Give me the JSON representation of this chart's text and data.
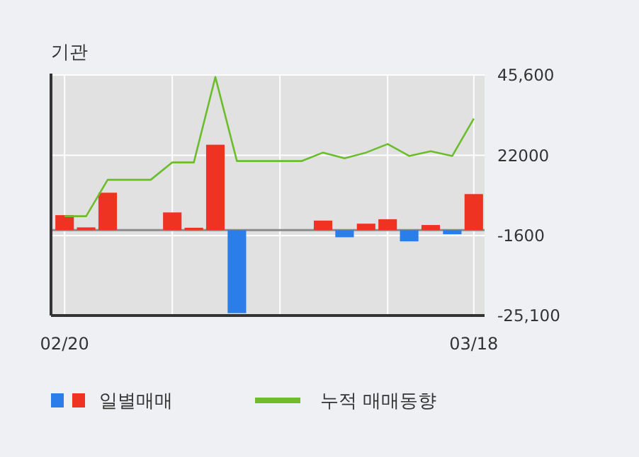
{
  "chart_data": {
    "type": "bar",
    "title": "기관",
    "categories": [
      "02/20",
      null,
      null,
      null,
      null,
      null,
      null,
      null,
      null,
      null,
      null,
      null,
      null,
      null,
      null,
      null,
      null,
      null,
      null,
      "03/18"
    ],
    "series": [
      {
        "name": "일별매매",
        "values": [
          4400,
          800,
          11000,
          0,
          0,
          5200,
          700,
          25100,
          -24400,
          0,
          0,
          0,
          2800,
          -2100,
          1900,
          3200,
          -3300,
          1500,
          -1200,
          10600
        ],
        "colors": [
          "#ee3322",
          "#ee3322",
          "#ee3322",
          "#ee3322",
          "#ee3322",
          "#ee3322",
          "#ee3322",
          "#ee3322",
          "#2b7de9",
          "#ee3322",
          "#ee3322",
          "#ee3322",
          "#ee3322",
          "#2b7de9",
          "#ee3322",
          "#ee3322",
          "#2b7de9",
          "#ee3322",
          "#2b7de9",
          "#ee3322"
        ]
      },
      {
        "name": "누적 매매동향",
        "type": "line",
        "color": "#6cbd2c",
        "values": [
          4100,
          4100,
          14800,
          14800,
          14800,
          19900,
          19900,
          45000,
          20300,
          20300,
          20300,
          20300,
          22800,
          21100,
          22800,
          25300,
          21800,
          23200,
          21800,
          32800
        ]
      }
    ],
    "ylim": [
      -25100,
      45600
    ],
    "yticks": [
      {
        "value": 45600,
        "label": "45,600"
      },
      22000,
      -1600,
      {
        "value": -25100,
        "label": "-25,100"
      }
    ],
    "grid": true,
    "legend": "bottom",
    "marker": "none",
    "line_style": "solid"
  }
}
